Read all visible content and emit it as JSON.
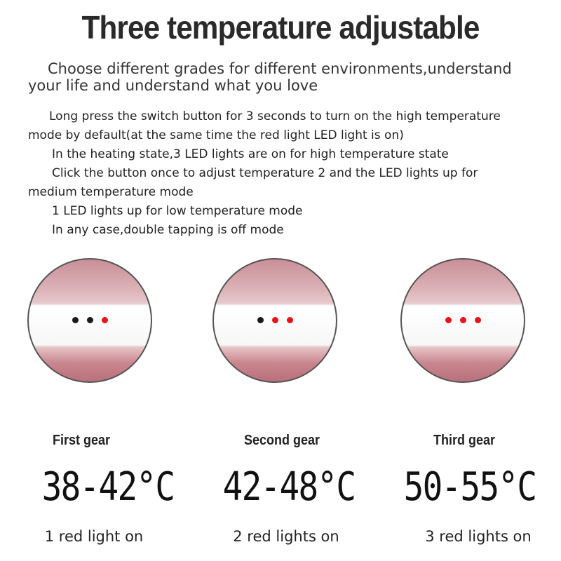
{
  "title": "Three temperature adjustable",
  "intro": [
    "Choose different grades for different environments,understand",
    "your life and understand what you love"
  ],
  "instructions": [
    "Long press the switch button for 3 seconds to turn on the high temperature",
    "mode by default(at the same time the red light LED light is on)",
    "In the heating state,3 LED lights are on for high temperature state",
    "Click the button once to adjust temperature 2 and the LED lights up for",
    "medium temperature mode",
    "1 LED lights up for low temperature mode",
    "In any case,double tapping is off mode"
  ],
  "colors": {
    "led_on": "#e8141c",
    "led_off": "#1a1a1a",
    "body_pink": "#c98f98"
  },
  "gears": [
    {
      "name": "First gear",
      "range": "38-42°C",
      "lights": "1 red light on",
      "leds": [
        false,
        false,
        true
      ]
    },
    {
      "name": "Second gear",
      "range": "42-48°C",
      "lights": "2 red lights on",
      "leds": [
        false,
        true,
        true
      ]
    },
    {
      "name": "Third gear",
      "range": "50-55°C",
      "lights": "3 red lights on",
      "leds": [
        true,
        true,
        true
      ]
    }
  ]
}
